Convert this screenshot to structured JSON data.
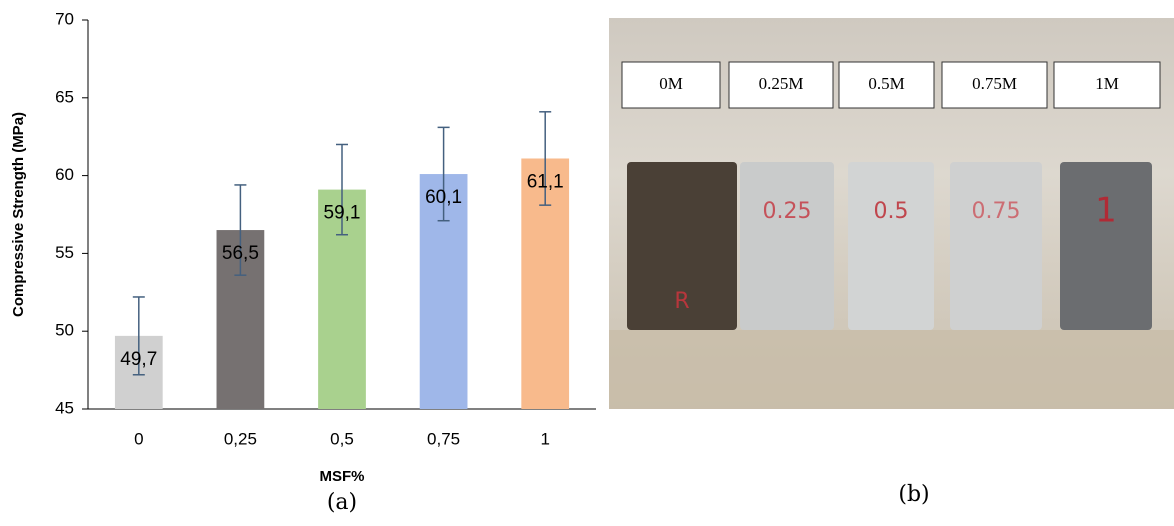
{
  "chart_data": {
    "type": "bar",
    "x_label": "MSF%",
    "y_label": "Compressive Strength (MPa)",
    "categories": [
      "0",
      "0,25",
      "0,5",
      "0,75",
      "1"
    ],
    "values": [
      49.7,
      56.5,
      59.1,
      60.1,
      61.1
    ],
    "value_labels": [
      "49,7",
      "56,5",
      "59,1",
      "60,1",
      "61,1"
    ],
    "errors": [
      2.5,
      2.9,
      2.9,
      3.0,
      3.0
    ],
    "colors": [
      "#d0d0d0",
      "#767171",
      "#a9d18e",
      "#9fb7e9",
      "#f8ba8c"
    ],
    "error_color": "#44607f",
    "ylim": [
      45,
      70
    ],
    "yticks": [
      45,
      50,
      55,
      60,
      65,
      70
    ]
  },
  "captions": [
    "(a)",
    "(b)"
  ],
  "photo": {
    "labels": [
      "0M",
      "0.25M",
      "0.5M",
      "0.75M",
      "1M"
    ],
    "markings": [
      "R",
      "0.25",
      "0.5",
      "0.75",
      "1"
    ]
  }
}
